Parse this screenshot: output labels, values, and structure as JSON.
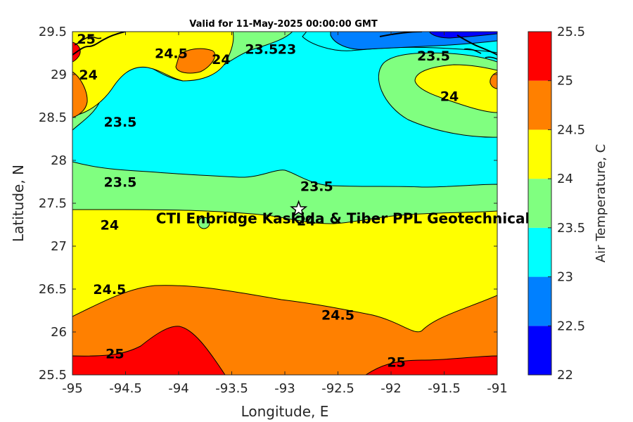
{
  "chart_data": {
    "type": "heatmap",
    "title": "Valid for 11-May-2025 00:00:00 GMT",
    "xlabel": "Longitude, E",
    "ylabel": "Latitude, N",
    "xlim": [
      -95,
      -91
    ],
    "ylim": [
      25.5,
      29.5
    ],
    "x_ticks": [
      "-95",
      "-94.5",
      "-94",
      "-93.5",
      "-93",
      "-92.5",
      "-92",
      "-91.5",
      "-91"
    ],
    "y_ticks": [
      "25.5",
      "26",
      "26.5",
      "27",
      "27.5",
      "28",
      "28.5",
      "29",
      "29.5"
    ],
    "colorbar": {
      "label": "Air Temperature, C",
      "ticks": [
        "22",
        "22.5",
        "23",
        "23.5",
        "24",
        "24.5",
        "25",
        "25.5"
      ],
      "levels": [
        22,
        22.5,
        23,
        23.5,
        24,
        24.5,
        25,
        25.5
      ],
      "colors": [
        "#0000ff",
        "#0080ff",
        "#00ffff",
        "#80ff80",
        "#ffff00",
        "#ff8000",
        "#ff0000",
        "#800000"
      ]
    },
    "contour_labels": [
      {
        "text": "24.5",
        "lon": -94.65,
        "lat": 26.5
      },
      {
        "text": "24.5",
        "lon": -92.5,
        "lat": 26.2
      },
      {
        "text": "25",
        "lon": -94.6,
        "lat": 25.75
      },
      {
        "text": "25",
        "lon": -91.95,
        "lat": 25.65
      },
      {
        "text": "23.5",
        "lon": -94.55,
        "lat": 27.75
      },
      {
        "text": "23.5",
        "lon": -92.7,
        "lat": 27.7
      },
      {
        "text": "24",
        "lon": -94.65,
        "lat": 27.25
      },
      {
        "text": "24",
        "lon": -92.8,
        "lat": 27.3
      },
      {
        "text": "23.5",
        "lon": -94.55,
        "lat": 28.45
      },
      {
        "text": "24",
        "lon": -94.85,
        "lat": 29
      },
      {
        "text": "24.5",
        "lon": -94.07,
        "lat": 29.25
      },
      {
        "text": "24",
        "lon": -93.6,
        "lat": 29.18
      },
      {
        "text": "23.5",
        "lon": -93.22,
        "lat": 29.3
      },
      {
        "text": "23",
        "lon": -92.98,
        "lat": 29.3
      },
      {
        "text": "23.5",
        "lon": -91.6,
        "lat": 29.22
      },
      {
        "text": "24",
        "lon": -91.45,
        "lat": 28.75
      },
      {
        "text": "25",
        "lon": -94.87,
        "lat": 29.42
      }
    ],
    "marker": {
      "symbol": "star",
      "lon": -92.87,
      "lat": 27.43
    },
    "place_label": {
      "text": "CTI Enbridge  Kaskida & Tiber PPL Geotechnical",
      "lon": -94.2,
      "lat": 27.33
    }
  }
}
